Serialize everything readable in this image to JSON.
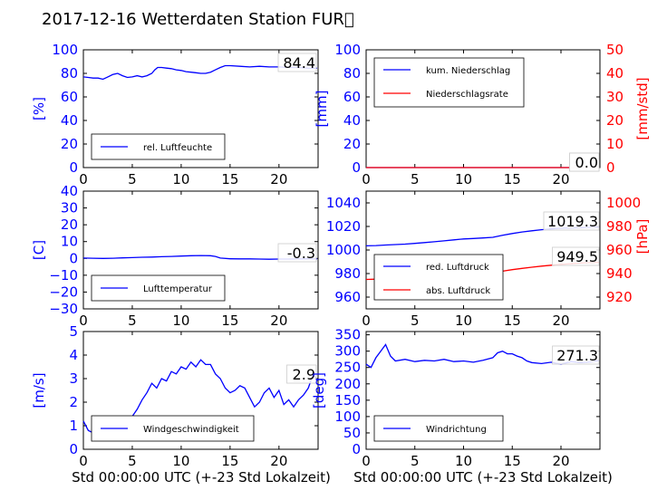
{
  "title": "2017-12-16 Wetterdaten Station FUR\u0000",
  "xlabel": "Std 00:00:00 UTC (+-23 Std Lokalzeit)",
  "colors": {
    "left": "#0000ff",
    "right": "#ff0000",
    "light": "#8080ff"
  },
  "chart_data": [
    {
      "type": "line",
      "panel": "humidity",
      "ylabel": "[%]",
      "xlim": [
        0,
        24
      ],
      "ylim": [
        0,
        100
      ],
      "xticks": [
        "0",
        "5",
        "10",
        "15",
        "20"
      ],
      "yticks": [
        "0",
        "20",
        "40",
        "60",
        "80",
        "100"
      ],
      "last_value": "84.4",
      "legend_placement": "lower-left",
      "series": [
        {
          "name": "rel. Luftfeuchte",
          "color": "#0000ff",
          "x": [
            0,
            0.5,
            1,
            1.5,
            2,
            2.5,
            3,
            3.5,
            4,
            4.5,
            5,
            5.5,
            6,
            6.5,
            7,
            7.3,
            7.6,
            8,
            8.5,
            9,
            9.5,
            10,
            10.5,
            11,
            11.5,
            12,
            12.5,
            13,
            13.5,
            14,
            14.5,
            15,
            16,
            17,
            18,
            19,
            20,
            21,
            22,
            23,
            23.9
          ],
          "y": [
            77,
            76.5,
            76,
            76,
            75,
            77,
            79,
            80,
            78,
            76.5,
            77,
            78,
            77,
            78,
            80,
            83,
            85,
            85,
            84.5,
            84,
            83,
            82.5,
            81.5,
            81,
            80.5,
            80,
            80,
            81,
            83,
            85,
            86.5,
            86.5,
            86,
            85.5,
            86,
            85.5,
            85.5,
            85,
            85,
            84.5,
            84.4
          ]
        }
      ]
    },
    {
      "type": "line",
      "panel": "precipitation",
      "ylabel": "[mm]",
      "y2label": "[mm/std]",
      "xlim": [
        0,
        24
      ],
      "ylim": [
        0,
        100
      ],
      "y2lim": [
        0,
        50
      ],
      "xticks": [
        "0",
        "5",
        "10",
        "15",
        "20"
      ],
      "yticks": [
        "0",
        "20",
        "40",
        "60",
        "80",
        "100"
      ],
      "y2ticks": [
        "0",
        "10",
        "20",
        "30",
        "40",
        "50"
      ],
      "last_values": [
        "0.0",
        "0.0"
      ],
      "legend_placement": "upper-left",
      "series": [
        {
          "name": "kum. Niederschlag",
          "color": "#0000ff",
          "axis": "left",
          "x": [
            0,
            23.9
          ],
          "y": [
            0,
            0
          ]
        },
        {
          "name": "Niederschlagsrate",
          "color": "#ff0000",
          "axis": "right",
          "x": [
            0,
            23.9
          ],
          "y": [
            0,
            0
          ]
        }
      ]
    },
    {
      "type": "line",
      "panel": "temperature",
      "ylabel": "[C]",
      "xlim": [
        0,
        24
      ],
      "ylim": [
        -30,
        40
      ],
      "xticks": [
        "0",
        "5",
        "10",
        "15",
        "20"
      ],
      "yticks": [
        "−30",
        "−20",
        "−10",
        "0",
        "10",
        "20",
        "30",
        "40"
      ],
      "last_value": "-0.3",
      "legend_placement": "lower-left",
      "series": [
        {
          "name": "Lufttemperatur",
          "color": "#0000ff",
          "x": [
            0,
            1,
            2,
            3,
            4,
            5,
            6,
            7,
            8,
            9,
            10,
            11,
            12,
            13,
            13.5,
            14,
            15,
            16,
            17,
            18,
            19,
            20,
            21,
            22,
            23,
            23.9
          ],
          "y": [
            0.2,
            0.1,
            0,
            0.1,
            0.3,
            0.5,
            0.7,
            0.8,
            1.0,
            1.2,
            1.4,
            1.6,
            1.7,
            1.6,
            1.2,
            0.2,
            -0.2,
            -0.3,
            -0.3,
            -0.4,
            -0.5,
            -0.4,
            -0.4,
            -0.3,
            -0.3,
            -0.3
          ]
        }
      ]
    },
    {
      "type": "line",
      "panel": "pressure",
      "y2label": "[hPa]",
      "xlim": [
        0,
        24
      ],
      "ylim": [
        950,
        1050
      ],
      "y2lim": [
        910,
        1010
      ],
      "xticks": [
        "0",
        "5",
        "10",
        "15",
        "20"
      ],
      "yticks": [
        "960",
        "980",
        "1000",
        "1020",
        "1040"
      ],
      "y2ticks": [
        "920",
        "940",
        "960",
        "980",
        "1000"
      ],
      "last_values": [
        "1019.3",
        "949.5"
      ],
      "legend_placement": "lower-left",
      "series": [
        {
          "name": "red. Luftdruck",
          "color": "#0000ff",
          "axis": "left",
          "x": [
            0,
            1,
            2,
            3,
            4,
            5,
            6,
            7,
            8,
            9,
            10,
            11,
            12,
            13,
            14,
            15,
            16,
            17,
            18,
            19,
            20,
            21,
            22,
            23,
            23.9
          ],
          "y": [
            1003.5,
            1003.8,
            1004.2,
            1004.6,
            1005.0,
            1005.6,
            1006.3,
            1007.0,
            1007.8,
            1008.6,
            1009.4,
            1009.8,
            1010.2,
            1010.8,
            1012.5,
            1014.0,
            1015.3,
            1016.3,
            1017.2,
            1017.9,
            1018.5,
            1018.8,
            1019.0,
            1019.2,
            1019.3
          ]
        },
        {
          "name": "abs. Luftdruck",
          "color": "#ff0000",
          "axis": "right",
          "x": [
            0,
            1,
            2,
            3,
            4,
            5,
            6,
            7,
            8,
            9,
            10,
            11,
            12,
            13,
            14,
            15,
            16,
            17,
            18,
            19,
            20,
            21,
            22,
            23,
            23.9
          ],
          "y": [
            935.0,
            935.2,
            935.5,
            935.8,
            936.1,
            936.5,
            937.0,
            937.6,
            938.2,
            938.8,
            939.4,
            939.8,
            940.2,
            940.7,
            942.0,
            943.3,
            944.4,
            945.4,
            946.3,
            947.1,
            947.8,
            948.4,
            948.9,
            949.3,
            949.5
          ]
        }
      ]
    },
    {
      "type": "line",
      "panel": "wind-speed",
      "ylabel": "[m/s]",
      "xlim": [
        0,
        24
      ],
      "ylim": [
        0,
        5
      ],
      "xticks": [
        "0",
        "5",
        "10",
        "15",
        "20"
      ],
      "yticks": [
        "0",
        "1",
        "2",
        "3",
        "4",
        "5"
      ],
      "last_value": "2.9",
      "legend_placement": "lower-center",
      "series": [
        {
          "name": "Windgeschwindigkeit",
          "color": "#0000ff",
          "x": [
            0,
            0.5,
            1,
            1.5,
            2,
            2.5,
            3,
            3.5,
            4,
            4.5,
            5,
            5.5,
            6,
            6.5,
            7,
            7.5,
            8,
            8.5,
            9,
            9.5,
            10,
            10.5,
            11,
            11.5,
            12,
            12.5,
            13,
            13.5,
            14,
            14.5,
            15,
            15.5,
            16,
            16.5,
            17,
            17.5,
            18,
            18.5,
            19,
            19.5,
            20,
            20.5,
            21,
            21.5,
            22,
            22.5,
            23,
            23.5,
            23.9
          ],
          "y": [
            1.2,
            0.8,
            0.7,
            0.9,
            1.1,
            1.0,
            1.2,
            1.1,
            1.3,
            1.2,
            1.4,
            1.7,
            2.1,
            2.4,
            2.8,
            2.6,
            3.0,
            2.9,
            3.3,
            3.2,
            3.5,
            3.4,
            3.7,
            3.5,
            3.8,
            3.6,
            3.6,
            3.2,
            3.0,
            2.6,
            2.4,
            2.5,
            2.7,
            2.6,
            2.2,
            1.8,
            2.0,
            2.4,
            2.6,
            2.2,
            2.5,
            1.9,
            2.1,
            1.8,
            2.1,
            2.3,
            2.6,
            3.2,
            2.9
          ]
        }
      ]
    },
    {
      "type": "line",
      "panel": "wind-direction",
      "ylabel": "[deg]",
      "xlim": [
        0,
        24
      ],
      "ylim": [
        0,
        360
      ],
      "xticks": [
        "0",
        "5",
        "10",
        "15",
        "20"
      ],
      "yticks": [
        "0",
        "50",
        "100",
        "150",
        "200",
        "250",
        "300",
        "350"
      ],
      "last_value": "271.3",
      "legend_placement": "lower-left",
      "series": [
        {
          "name": "Windrichtung",
          "color": "#0000ff",
          "x": [
            0,
            0.5,
            1,
            1.5,
            2,
            2.5,
            3,
            4,
            5,
            6,
            7,
            8,
            9,
            10,
            11,
            12,
            13,
            13.5,
            14,
            14.5,
            15,
            15.5,
            16,
            16.5,
            17,
            18,
            19,
            20,
            21,
            22,
            23,
            23.9
          ],
          "y": [
            260,
            250,
            280,
            300,
            320,
            285,
            270,
            275,
            268,
            272,
            270,
            275,
            268,
            270,
            266,
            272,
            280,
            295,
            300,
            292,
            292,
            285,
            280,
            270,
            265,
            262,
            266,
            260,
            268,
            265,
            267,
            271.3
          ]
        }
      ]
    }
  ]
}
